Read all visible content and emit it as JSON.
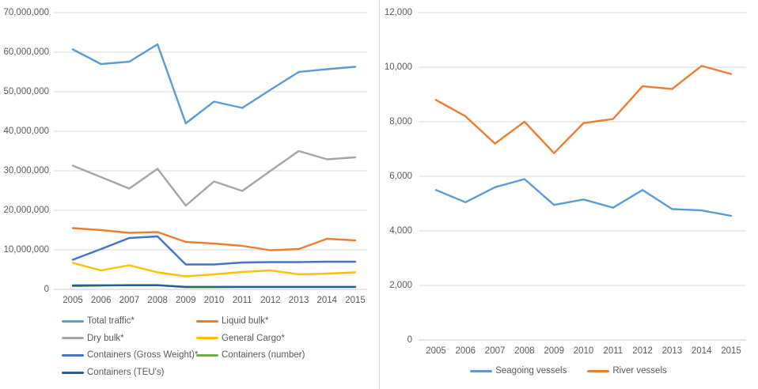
{
  "colors": {
    "gridline": "#d9d9d9",
    "axis_line": "#c8c8c8",
    "axis_text": "#595959",
    "background": "#ffffff"
  },
  "chart_data": [
    {
      "type": "line",
      "title": "",
      "xlabel": "",
      "ylabel": "",
      "grid": true,
      "legend_position": "bottom-left-two-columns",
      "ylim": [
        0,
        70000000
      ],
      "ytick_step": 10000000,
      "ytick_labels": [
        "0",
        "10,000,000",
        "20,000,000",
        "30,000,000",
        "40,000,000",
        "50,000,000",
        "60,000,000",
        "70,000,000"
      ],
      "categories": [
        "2005",
        "2006",
        "2007",
        "2008",
        "2009",
        "2010",
        "2011",
        "2012",
        "2013",
        "2014",
        "2015"
      ],
      "series": [
        {
          "name": "Total traffic*",
          "color": "#5B9BD5",
          "values": [
            60700000,
            57000000,
            57600000,
            62000000,
            42000000,
            47500000,
            45900000,
            50500000,
            55000000,
            55700000,
            56300000
          ]
        },
        {
          "name": "Liquid bulk*",
          "color": "#ED7D31",
          "values": [
            15500000,
            15000000,
            14300000,
            14500000,
            12000000,
            11600000,
            11000000,
            9900000,
            10200000,
            12800000,
            12400000
          ]
        },
        {
          "name": "Dry bulk*",
          "color": "#A5A5A5",
          "values": [
            31300000,
            28400000,
            25500000,
            30500000,
            21200000,
            27300000,
            24900000,
            30000000,
            35000000,
            32900000,
            33400000
          ]
        },
        {
          "name": "General Cargo*",
          "color": "#FFC000",
          "values": [
            6700000,
            4800000,
            6100000,
            4300000,
            3300000,
            3800000,
            4400000,
            4800000,
            3800000,
            4000000,
            4300000
          ]
        },
        {
          "name": "Containers (Gross Weight)*",
          "color": "#4472C4",
          "values": [
            7500000,
            10200000,
            13000000,
            13400000,
            6300000,
            6300000,
            6800000,
            6900000,
            6900000,
            7000000,
            7000000
          ]
        },
        {
          "name": "Containers (number)",
          "color": "#70AD47",
          "values": [
            850000,
            950000,
            1100000,
            1100000,
            550000,
            550000,
            600000,
            600000,
            600000,
            600000,
            600000
          ]
        },
        {
          "name": "Containers (TEU's)",
          "color": "#255E91",
          "values": [
            1000000,
            1050000,
            1050000,
            1050000,
            650000,
            650000,
            650000,
            650000,
            650000,
            650000,
            650000
          ]
        }
      ]
    },
    {
      "type": "line",
      "title": "",
      "xlabel": "",
      "ylabel": "",
      "grid": true,
      "legend_position": "bottom-center",
      "ylim": [
        0,
        12000
      ],
      "ytick_step": 2000,
      "ytick_labels": [
        "0",
        "2,000",
        "4,000",
        "6,000",
        "8,000",
        "10,000",
        "12,000"
      ],
      "categories": [
        "2005",
        "2006",
        "2007",
        "2008",
        "2009",
        "2010",
        "2011",
        "2012",
        "2013",
        "2014",
        "2015"
      ],
      "series": [
        {
          "name": "Seagoing vessels",
          "color": "#5B9BD5",
          "values": [
            5500,
            5050,
            5600,
            5900,
            4950,
            5150,
            4850,
            5500,
            4800,
            4750,
            4550
          ]
        },
        {
          "name": "River vessels",
          "color": "#ED7D31",
          "values": [
            8800,
            8200,
            7200,
            8000,
            6850,
            7950,
            8100,
            9300,
            9200,
            10050,
            9750
          ]
        }
      ]
    }
  ]
}
